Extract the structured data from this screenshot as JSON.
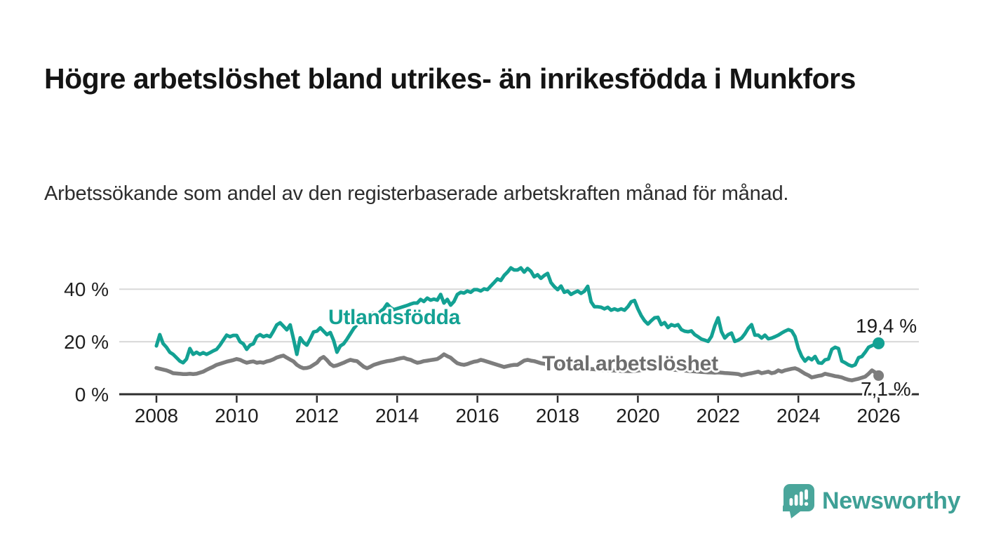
{
  "header": {
    "title": "Högre arbetslöshet bland utrikes- än inrikesfödda i Munkfors",
    "subtitle": "Arbetssökande som andel av den registerbaserade arbetskraften månad för månad."
  },
  "chart_data": {
    "type": "line",
    "title": "Arbetssökande som andel av den registerbaserade arbetskraften månad för månad",
    "x_unit": "month",
    "x_start": "2008-01",
    "x_end": "2026-01",
    "xlim": [
      2008,
      2026
    ],
    "ylim": [
      0,
      50
    ],
    "grid": "horizontal",
    "x_tick_labels": [
      "2008",
      "2010",
      "2012",
      "2014",
      "2016",
      "2018",
      "2020",
      "2022",
      "2024",
      "2026"
    ],
    "y_ticks": [
      {
        "value": 0,
        "label": "0 %"
      },
      {
        "value": 20,
        "label": "20 %"
      },
      {
        "value": 40,
        "label": "40 %"
      }
    ],
    "series": [
      {
        "name": "Total arbetslöshet",
        "color": "#7d7d7d",
        "label_color": "#6d6d6d",
        "end_label": "7,1 %",
        "end_value": 7.1,
        "values": [
          10.0,
          9.7,
          9.4,
          9.1,
          8.6,
          8.0,
          7.9,
          7.8,
          7.7,
          7.7,
          7.8,
          7.7,
          7.8,
          8.2,
          8.6,
          9.3,
          9.9,
          10.5,
          11.2,
          11.6,
          12.0,
          12.4,
          12.7,
          13.0,
          13.4,
          13.1,
          12.5,
          12.0,
          12.3,
          12.5,
          12.0,
          12.2,
          12.0,
          12.5,
          12.8,
          13.3,
          14.0,
          14.4,
          14.7,
          13.9,
          13.2,
          12.5,
          11.2,
          10.4,
          9.9,
          10.0,
          10.4,
          11.2,
          12.0,
          13.5,
          14.2,
          13.0,
          11.5,
          10.7,
          11.0,
          11.5,
          12.0,
          12.6,
          13.1,
          12.8,
          12.6,
          11.5,
          10.5,
          9.9,
          10.5,
          11.2,
          11.6,
          12.0,
          12.3,
          12.6,
          12.8,
          13.0,
          13.4,
          13.7,
          13.9,
          13.4,
          13.1,
          12.5,
          12.0,
          12.2,
          12.6,
          12.8,
          13.0,
          13.2,
          13.4,
          14.2,
          15.2,
          14.5,
          13.9,
          12.8,
          11.8,
          11.4,
          11.2,
          11.5,
          12.0,
          12.4,
          12.6,
          13.1,
          12.8,
          12.4,
          12.0,
          11.6,
          11.2,
          10.8,
          10.4,
          10.7,
          11.0,
          11.2,
          11.2,
          12.0,
          12.8,
          13.1,
          12.8,
          12.6,
          12.2,
          11.8,
          11.6,
          11.4,
          11.2,
          11.0,
          10.8,
          10.6,
          10.5,
          10.4,
          10.3,
          10.2,
          10.0,
          9.9,
          9.8,
          9.7,
          9.6,
          9.5,
          9.4,
          9.3,
          9.2,
          9.2,
          9.1,
          9.0,
          9.0,
          8.9,
          8.9,
          8.8,
          8.8,
          8.9,
          9.0,
          9.2,
          9.8,
          10.4,
          10.6,
          10.5,
          10.3,
          10.0,
          9.8,
          9.6,
          9.4,
          9.3,
          9.2,
          9.1,
          9.0,
          8.9,
          8.8,
          8.7,
          8.6,
          8.5,
          8.4,
          8.3,
          8.3,
          8.2,
          8.3,
          8.2,
          8.1,
          8.0,
          7.9,
          7.8,
          7.7,
          7.2,
          7.5,
          7.8,
          8.0,
          8.3,
          8.6,
          8.0,
          8.3,
          8.6,
          8.0,
          8.3,
          9.1,
          8.6,
          9.1,
          9.4,
          9.7,
          9.9,
          9.4,
          8.6,
          7.8,
          7.2,
          6.4,
          6.7,
          7.0,
          7.2,
          7.8,
          7.5,
          7.2,
          6.9,
          6.7,
          6.4,
          5.9,
          5.5,
          5.3,
          5.6,
          5.9,
          6.3,
          6.7,
          7.8,
          9.1,
          8.3,
          7.1
        ]
      },
      {
        "name": "Utlandsfödda",
        "color": "#13a193",
        "label_color": "#13a193",
        "end_label": "19,4 %",
        "end_value": 19.4,
        "values": [
          18.4,
          22.7,
          19.3,
          17.9,
          16.0,
          15.2,
          13.9,
          12.6,
          12.0,
          13.4,
          17.4,
          15.2,
          16.0,
          15.2,
          15.8,
          15.2,
          15.8,
          16.5,
          17.1,
          18.7,
          20.6,
          22.5,
          21.9,
          22.4,
          22.4,
          20.0,
          19.2,
          17.1,
          18.7,
          19.2,
          21.9,
          22.7,
          21.9,
          22.4,
          21.9,
          24.0,
          26.4,
          27.2,
          25.9,
          24.5,
          26.4,
          21.1,
          15.2,
          21.5,
          19.7,
          18.7,
          21.1,
          23.7,
          24.0,
          25.3,
          24.0,
          22.7,
          23.5,
          20.5,
          16.0,
          18.4,
          19.2,
          21.0,
          23.0,
          25.0,
          26.5,
          27.5,
          28.5,
          29.5,
          30.5,
          31.0,
          30.2,
          31.5,
          32.5,
          34.4,
          33.0,
          32.2,
          32.6,
          33.0,
          33.4,
          33.8,
          34.3,
          34.7,
          34.7,
          36.1,
          35.3,
          36.6,
          35.8,
          36.2,
          35.8,
          38.0,
          34.7,
          36.1,
          33.9,
          35.3,
          38.0,
          38.8,
          38.5,
          39.3,
          38.8,
          39.8,
          39.8,
          39.3,
          40.1,
          39.8,
          41.2,
          42.5,
          43.9,
          43.3,
          45.2,
          46.5,
          48.1,
          47.3,
          47.3,
          48.1,
          46.5,
          47.9,
          46.8,
          44.7,
          45.5,
          44.1,
          45.2,
          46.0,
          42.5,
          41.0,
          39.8,
          41.2,
          38.8,
          39.3,
          38.0,
          38.7,
          39.3,
          38.4,
          39.2,
          41.1,
          35.2,
          33.3,
          33.3,
          33.1,
          32.5,
          33.1,
          32.0,
          32.5,
          32.0,
          32.5,
          32.0,
          33.3,
          35.2,
          35.7,
          32.5,
          29.9,
          28.0,
          26.7,
          28.0,
          29.1,
          29.3,
          26.5,
          27.3,
          25.4,
          26.5,
          26.0,
          26.5,
          24.6,
          24.0,
          23.8,
          24.1,
          22.7,
          21.9,
          21.0,
          20.6,
          20.1,
          22.0,
          26.0,
          29.1,
          23.8,
          21.4,
          22.7,
          23.3,
          20.1,
          20.6,
          21.4,
          23.0,
          25.1,
          26.5,
          22.5,
          22.5,
          21.4,
          22.5,
          21.1,
          21.4,
          21.9,
          22.5,
          23.3,
          24.0,
          24.6,
          24.1,
          22.0,
          17.4,
          14.4,
          12.6,
          13.9,
          13.1,
          14.4,
          12.0,
          11.8,
          13.1,
          13.4,
          17.1,
          17.9,
          17.4,
          12.6,
          12.0,
          11.2,
          10.7,
          11.2,
          13.9,
          14.4,
          16.0,
          17.9,
          18.5,
          19.0,
          19.4
        ]
      }
    ],
    "style": {
      "gridline_color": "#d8d8d8",
      "axis_color": "#2e2e2e",
      "tick_label_color": "#1f1f1f"
    }
  },
  "footer": {
    "brand": "Newsworthy",
    "brand_color": "#3ea096",
    "icon": "newsworthy-speech-bubble-chart-icon",
    "icon_color": "#4aa69b"
  }
}
